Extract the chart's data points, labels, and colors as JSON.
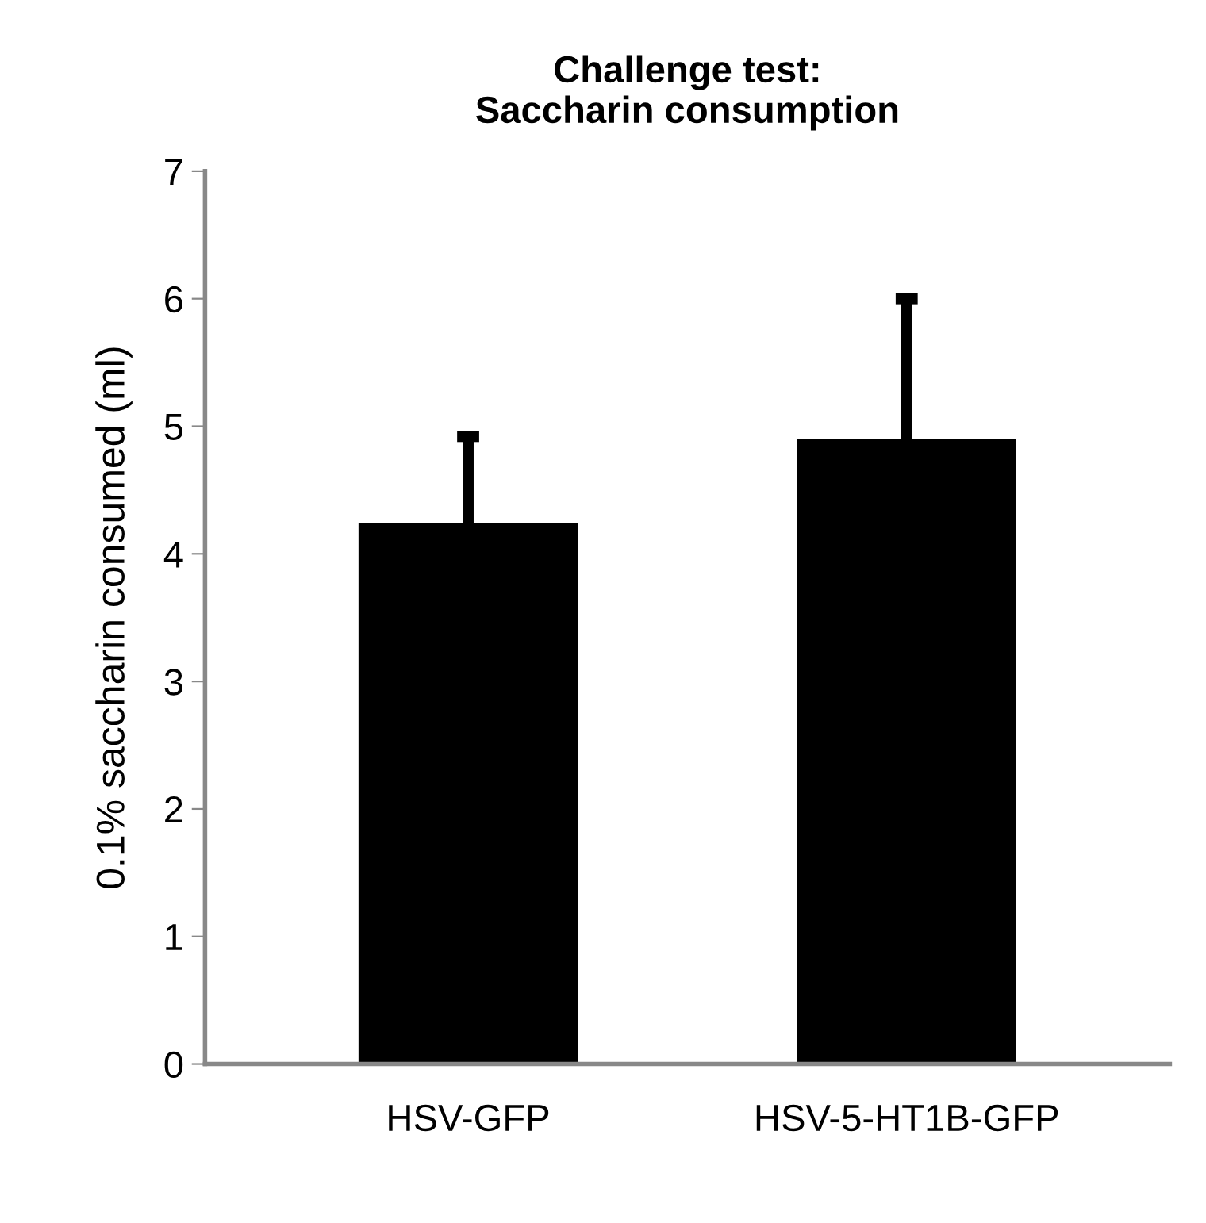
{
  "chart_data": {
    "type": "bar",
    "title": "Challenge test:\nSaccharin consumption",
    "ylabel": "0.1% saccharin consumed (ml)",
    "categories": [
      "HSV-GFP",
      "HSV-5-HT1B-GFP"
    ],
    "values": [
      4.24,
      4.9
    ],
    "errors": [
      0.68,
      1.1
    ],
    "color": "#000000",
    "ylim": [
      0,
      7
    ],
    "yticks": [
      0,
      1,
      2,
      3,
      4,
      5,
      6,
      7
    ],
    "grid": false,
    "legend": false
  }
}
